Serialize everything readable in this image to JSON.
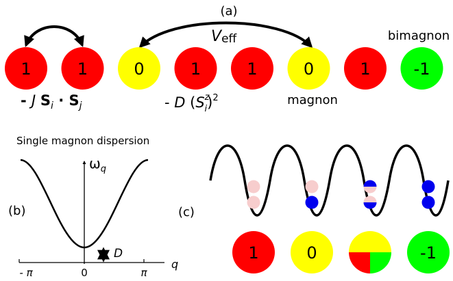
{
  "panel_a": {
    "label": "(a)",
    "sites": [
      "1",
      "1",
      "0",
      "1",
      "1",
      "0",
      "1",
      "-1"
    ],
    "site_colors": {
      "1": "#ff0000",
      "0": "#ffff00",
      "-1": "#00ff00"
    },
    "veff_symbol": "V",
    "veff_sub": "eff",
    "bimagnon_label": "bimagnon",
    "magnon_label": "magnon",
    "exchange_term": {
      "prefix": "- ",
      "J": "J",
      "S": "S",
      "sub_i": "i",
      "dot": " · ",
      "sub_j": "j"
    },
    "anisotropy_term": {
      "prefix": "- ",
      "D": "D",
      "open": " (",
      "S": "S",
      "sub_i": "i",
      "sup_z": "z",
      "close": ")",
      "power": "2"
    }
  },
  "panel_b": {
    "label": "(b)",
    "title": "Single magnon dispersion",
    "omega": "ω",
    "omega_sub": "q",
    "gap_label": "D",
    "axis_label": "q",
    "tick_labels": [
      "- π",
      "0",
      "π"
    ]
  },
  "panel_c": {
    "label": "(c)",
    "legend_sites": [
      "1",
      "0",
      "",
      "-1"
    ],
    "colors": {
      "pale_dot": "#f7cdcd",
      "full_dot": "#0000ee",
      "red": "#ff0000",
      "yellow": "#ffff00",
      "green": "#00ff00"
    }
  }
}
